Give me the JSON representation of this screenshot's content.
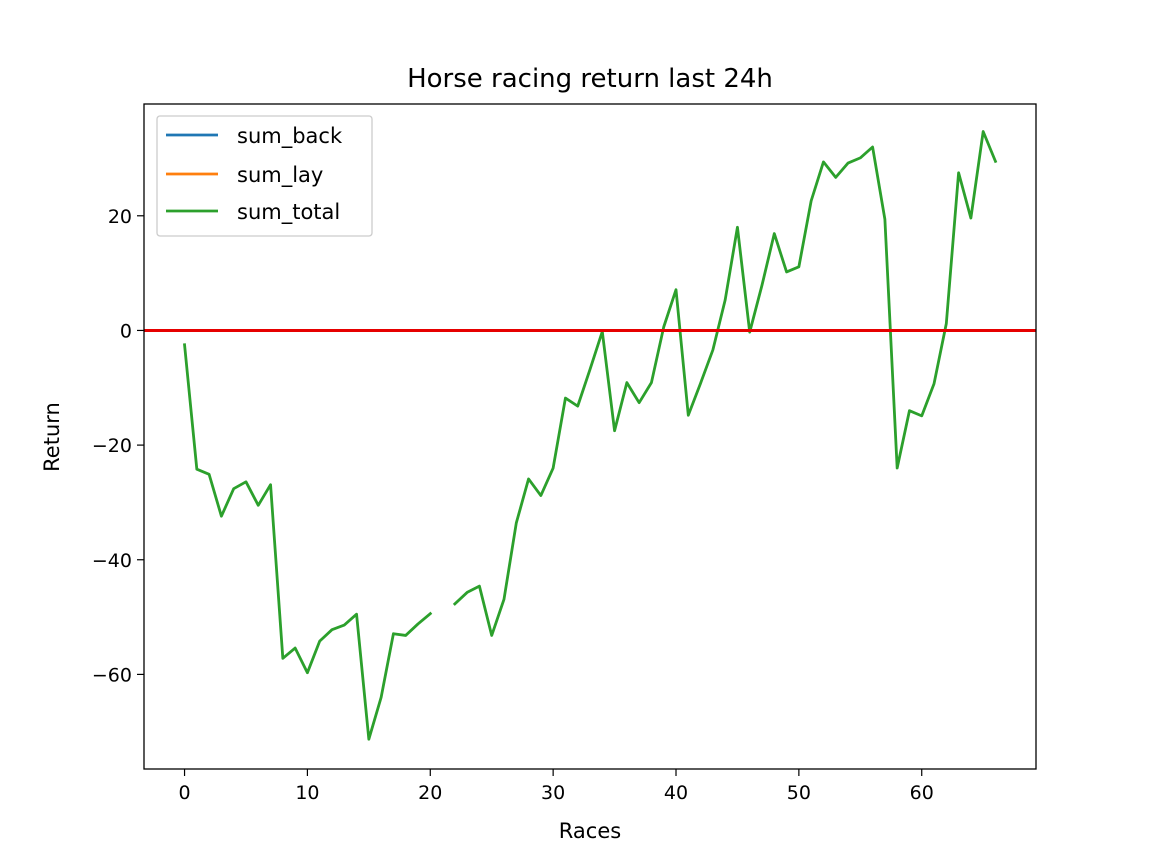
{
  "chart_data": {
    "type": "line",
    "title": "Horse racing return last 24h",
    "xlabel": "Races",
    "ylabel": "Return",
    "xlim": [
      -3.3,
      69.3
    ],
    "ylim": [
      -76.5,
      39.5
    ],
    "xticks": [
      0,
      10,
      20,
      30,
      40,
      50,
      60
    ],
    "yticks": [
      -60,
      -40,
      -20,
      0,
      20
    ],
    "ytick_labels": [
      "−60",
      "−40",
      "−20",
      "0",
      "20"
    ],
    "grid": false,
    "legend_position": "upper-left",
    "reference_line": {
      "y": 0,
      "color": "#e60000"
    },
    "series": [
      {
        "name": "sum_back",
        "color": "#1f77b4",
        "values": []
      },
      {
        "name": "sum_lay",
        "color": "#ff7f0e",
        "values": []
      },
      {
        "name": "sum_total",
        "color": "#2ca02c",
        "x": [
          0,
          1,
          2,
          3,
          4,
          5,
          6,
          7,
          8,
          9,
          10,
          11,
          12,
          13,
          14,
          15,
          16,
          17,
          18,
          19,
          20,
          21,
          22,
          23,
          24,
          25,
          26,
          27,
          28,
          29,
          30,
          31,
          32,
          33,
          34,
          35,
          36,
          37,
          38,
          39,
          40,
          41,
          42,
          43,
          44,
          45,
          46,
          47,
          48,
          49,
          50,
          51,
          52,
          53,
          54,
          55,
          56,
          57,
          58,
          59,
          60,
          61,
          62,
          63,
          64,
          65,
          66
        ],
        "values": [
          -2.5,
          -24.2,
          -25.1,
          -32.4,
          -27.6,
          -26.4,
          -30.5,
          -26.9,
          -57.2,
          -55.4,
          -59.7,
          -54.2,
          -52.2,
          -51.4,
          -49.5,
          -71.3,
          -64.0,
          -52.9,
          -53.2,
          -51.2,
          -49.4,
          null,
          -47.7,
          -45.7,
          -44.6,
          -53.2,
          -46.9,
          -33.6,
          -25.9,
          -28.8,
          -24.0,
          -11.8,
          -13.2,
          -6.8,
          -0.2,
          -17.5,
          -9.1,
          -12.6,
          -9.1,
          0.6,
          7.1,
          -14.8,
          -9.2,
          -3.4,
          5.3,
          18.0,
          -0.3,
          7.9,
          16.9,
          10.2,
          11.1,
          22.6,
          29.4,
          26.7,
          29.2,
          30.1,
          32.0,
          19.4,
          -24.0,
          -14.0,
          -14.9,
          -9.3,
          1.2,
          27.5,
          19.6,
          34.7,
          29.5
        ]
      }
    ]
  }
}
